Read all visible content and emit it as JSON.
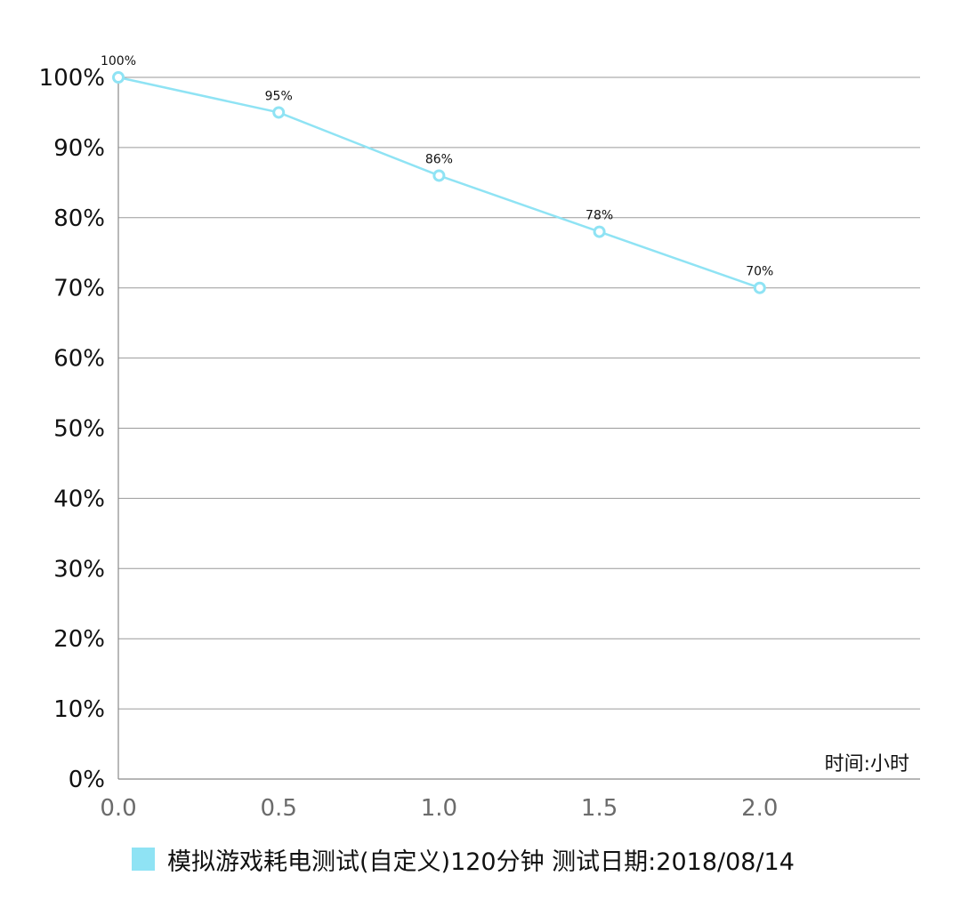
{
  "chart_data": {
    "type": "line",
    "x": [
      0.0,
      0.5,
      1.0,
      1.5,
      2.0
    ],
    "series": [
      {
        "name": "模拟游戏耗电测试(自定义)120分钟",
        "values": [
          100,
          95,
          86,
          78,
          70
        ],
        "labels": [
          "100%",
          "95%",
          "86%",
          "78%",
          "70%"
        ],
        "color": "#8fe3f4"
      }
    ],
    "x_ticks": [
      "0.0",
      "0.5",
      "1.0",
      "1.5",
      "2.0"
    ],
    "y_ticks": [
      "0%",
      "10%",
      "20%",
      "30%",
      "40%",
      "50%",
      "60%",
      "70%",
      "80%",
      "90%",
      "100%"
    ],
    "xlim": [
      0,
      2.5
    ],
    "ylim": [
      0,
      100
    ],
    "xlabel": "时间:小时",
    "ylabel": "",
    "grid": "horizontal",
    "legend_position": "bottom",
    "legend_text": "模拟游戏耗电测试(自定义)120分钟   测试日期:2018/08/14"
  }
}
